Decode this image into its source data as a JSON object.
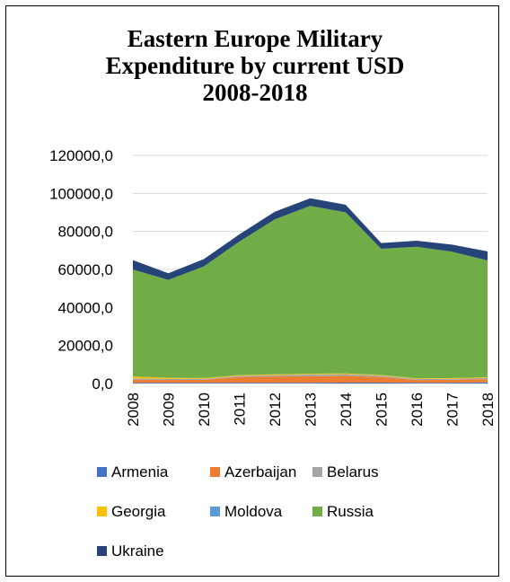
{
  "chart_data": {
    "type": "area",
    "stacked": true,
    "title_lines": [
      "Eastern Europe Military",
      "Expenditure by current USD",
      "2008-2018"
    ],
    "categories": [
      "2008",
      "2009",
      "2010",
      "2011",
      "2012",
      "2013",
      "2014",
      "2015",
      "2016",
      "2017",
      "2018"
    ],
    "ylim": [
      0,
      120000
    ],
    "yticks": [
      "0,0",
      "20000,0",
      "40000,0",
      "60000,0",
      "80000,0",
      "100000,0",
      "120000,0"
    ],
    "grid": true,
    "legend_position": "bottom",
    "series": [
      {
        "name": "Armenia",
        "color": "#4472C4",
        "values": [
          400,
          400,
          400,
          400,
          400,
          400,
          450,
          450,
          430,
          440,
          610
        ]
      },
      {
        "name": "Azerbaijan",
        "color": "#ED7D31",
        "values": [
          1600,
          1500,
          1500,
          3000,
          3300,
          3400,
          3600,
          3000,
          1400,
          1500,
          1700
        ]
      },
      {
        "name": "Belarus",
        "color": "#A5A5A5",
        "values": [
          700,
          600,
          600,
          600,
          700,
          900,
          900,
          700,
          550,
          550,
          650
        ]
      },
      {
        "name": "Georgia",
        "color": "#FFC000",
        "values": [
          1000,
          500,
          400,
          400,
          400,
          400,
          350,
          300,
          300,
          320,
          330
        ]
      },
      {
        "name": "Moldova",
        "color": "#5B9BD5",
        "values": [
          20,
          20,
          20,
          20,
          25,
          25,
          25,
          25,
          30,
          30,
          35
        ]
      },
      {
        "name": "Russia",
        "color": "#70AD47",
        "values": [
          56200,
          51500,
          58700,
          70200,
          81500,
          88300,
          84700,
          66400,
          69200,
          66500,
          61400
        ]
      },
      {
        "name": "Ukraine",
        "color": "#264478",
        "values": [
          5000,
          3500,
          3800,
          3800,
          4000,
          4000,
          4000,
          3000,
          3200,
          3700,
          4800
        ]
      }
    ]
  }
}
